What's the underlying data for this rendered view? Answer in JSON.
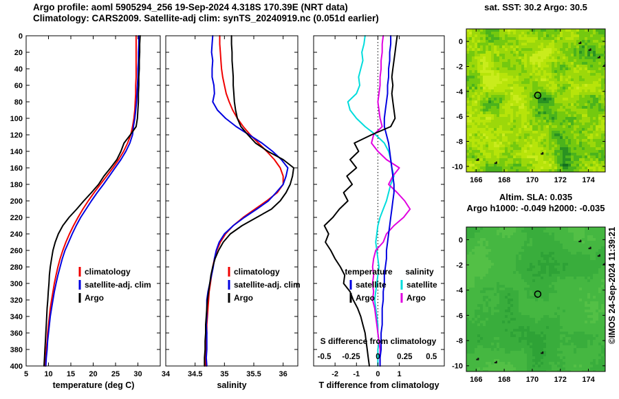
{
  "header": {
    "line1": "Argo profile: aoml 5905294_256 19-Sep-2024 4.318S 170.39E (NRT data)",
    "line2": "Climatology: CARS2009. Satellite-adj clim: synTS_20240919.nc (0.051d earlier)"
  },
  "watermark": "©IMOS 24-Sep-2024 11:39:21",
  "colors": {
    "climatology": "#f00000",
    "satellite": "#0000e0",
    "argo": "#000000",
    "satellite_salinity": "#00dcdc",
    "argo_salinity": "#e000e0"
  },
  "islands": [
    [
      173.4,
      -0.15
    ],
    [
      174.1,
      -0.7
    ],
    [
      174.75,
      -1.3
    ],
    [
      175.15,
      -1.95
    ],
    [
      175.5,
      -2.6
    ],
    [
      166.1,
      -9.5
    ],
    [
      167.4,
      -9.75
    ],
    [
      170.7,
      -9.0
    ]
  ],
  "chart_data": [
    {
      "type": "line",
      "xlabel": "temperature (deg C)",
      "xlim": [
        5,
        35
      ],
      "xticks": [
        5,
        10,
        15,
        20,
        25,
        30
      ],
      "ylim": [
        0,
        400
      ],
      "yticks": [
        0,
        20,
        40,
        60,
        80,
        100,
        120,
        140,
        160,
        180,
        200,
        220,
        240,
        260,
        280,
        300,
        320,
        340,
        360,
        380,
        400
      ],
      "yticklabels": true,
      "depths": [
        0,
        10,
        20,
        30,
        40,
        50,
        60,
        70,
        80,
        90,
        100,
        110,
        120,
        130,
        140,
        150,
        160,
        170,
        180,
        190,
        200,
        210,
        220,
        230,
        240,
        250,
        260,
        270,
        280,
        290,
        300,
        310,
        320,
        330,
        340,
        350,
        360,
        370,
        380,
        390,
        400
      ],
      "legend": [
        {
          "label": "climatology",
          "color": "climatology"
        },
        {
          "label": "satellite-adj. clim",
          "color": "satellite"
        },
        {
          "label": "Argo",
          "color": "argo"
        }
      ],
      "series": [
        {
          "name": "climatology-temperature",
          "color": "climatology",
          "values": [
            29.6,
            29.6,
            29.6,
            29.6,
            29.6,
            29.6,
            29.5,
            29.5,
            29.4,
            29.3,
            29.1,
            28.8,
            28.4,
            27.7,
            26.8,
            25.7,
            24.4,
            23.0,
            21.6,
            20.2,
            18.9,
            17.7,
            16.6,
            15.6,
            14.7,
            13.9,
            13.2,
            12.6,
            12.1,
            11.7,
            11.3,
            11.0,
            10.7,
            10.4,
            10.2,
            10.0,
            9.8,
            9.7,
            9.5,
            9.4,
            9.3
          ]
        },
        {
          "name": "satellite-adj-clim-temperature",
          "color": "satellite",
          "values": [
            30.2,
            30.2,
            30.1,
            30.1,
            30.0,
            30.0,
            29.9,
            29.8,
            29.7,
            29.5,
            29.3,
            29.0,
            28.8,
            28.2,
            27.3,
            26.2,
            24.9,
            23.6,
            22.3,
            20.9,
            19.6,
            18.4,
            17.2,
            16.2,
            15.3,
            14.5,
            13.7,
            13.1,
            12.6,
            12.1,
            11.7,
            11.3,
            11.0,
            10.7,
            10.4,
            10.2,
            10.0,
            9.8,
            9.7,
            9.5,
            9.4
          ]
        },
        {
          "name": "argo-temperature",
          "color": "argo",
          "values": [
            30.5,
            30.4,
            30.4,
            30.3,
            30.3,
            30.2,
            30.2,
            30.1,
            30.1,
            30.0,
            29.9,
            29.6,
            28.3,
            26.9,
            26.2,
            25.3,
            23.9,
            22.4,
            21.2,
            19.6,
            17.9,
            16.3,
            14.6,
            13.2,
            12.2,
            11.5,
            11.0,
            10.7,
            10.4,
            10.2,
            10.1,
            9.95,
            9.85,
            9.7,
            9.6,
            9.5,
            9.4,
            9.3,
            9.2,
            9.1,
            9.0
          ]
        }
      ]
    },
    {
      "type": "line",
      "xlabel": "salinity",
      "xlim": [
        34,
        36.25
      ],
      "xticks": [
        34,
        34.5,
        35,
        35.5,
        36
      ],
      "ylim": [
        0,
        400
      ],
      "yticks": [
        0,
        20,
        40,
        60,
        80,
        100,
        120,
        140,
        160,
        180,
        200,
        220,
        240,
        260,
        280,
        300,
        320,
        340,
        360,
        380,
        400
      ],
      "yticklabels": false,
      "depths": [
        0,
        10,
        20,
        30,
        40,
        50,
        60,
        70,
        80,
        90,
        100,
        110,
        120,
        130,
        140,
        150,
        160,
        170,
        180,
        190,
        200,
        210,
        220,
        230,
        240,
        250,
        260,
        270,
        280,
        290,
        300,
        310,
        320,
        330,
        340,
        350,
        360,
        370,
        380,
        390,
        400
      ],
      "legend": [
        {
          "label": "climatology",
          "color": "climatology"
        },
        {
          "label": "satellite-adj. clim",
          "color": "satellite"
        },
        {
          "label": "Argo",
          "color": "argo"
        }
      ],
      "series": [
        {
          "name": "climatology-salinity",
          "color": "climatology",
          "values": [
            34.92,
            34.92,
            34.93,
            34.94,
            34.95,
            34.97,
            35.0,
            35.03,
            35.08,
            35.14,
            35.22,
            35.32,
            35.44,
            35.58,
            35.72,
            35.85,
            35.95,
            36.0,
            36.0,
            35.9,
            35.72,
            35.52,
            35.32,
            35.15,
            35.02,
            34.93,
            34.87,
            34.83,
            34.8,
            34.78,
            34.76,
            34.74,
            34.73,
            34.72,
            34.71,
            34.7,
            34.7,
            34.69,
            34.69,
            34.68,
            34.68
          ]
        },
        {
          "name": "satellite-adj-clim-salinity",
          "color": "satellite",
          "values": [
            34.8,
            34.79,
            34.78,
            34.8,
            34.79,
            34.79,
            34.82,
            34.83,
            34.8,
            34.88,
            35.02,
            35.2,
            35.42,
            35.64,
            35.82,
            35.97,
            36.08,
            36.05,
            36.0,
            35.88,
            35.75,
            35.55,
            35.34,
            35.15,
            35.0,
            34.91,
            34.86,
            34.83,
            34.81,
            34.78,
            34.75,
            34.72,
            34.7,
            34.7,
            34.7,
            34.69,
            34.7,
            34.7,
            34.7,
            34.69,
            34.7
          ]
        },
        {
          "name": "argo-salinity",
          "color": "argo",
          "values": [
            35.12,
            35.12,
            35.13,
            35.13,
            35.14,
            35.15,
            35.15,
            35.16,
            35.17,
            35.19,
            35.22,
            35.28,
            35.4,
            35.53,
            35.74,
            36.0,
            36.18,
            36.16,
            36.12,
            36.05,
            35.95,
            35.8,
            35.55,
            35.3,
            35.1,
            34.98,
            34.9,
            34.84,
            34.8,
            34.77,
            34.75,
            34.73,
            34.71,
            34.7,
            34.69,
            34.68,
            34.68,
            34.67,
            34.67,
            34.66,
            34.66
          ]
        }
      ]
    },
    {
      "type": "line",
      "xlabel": "T difference from climatology",
      "x2label": "S difference from climatology",
      "xlim": [
        -3,
        3.1
      ],
      "xticks": [
        -2,
        -1,
        0,
        1
      ],
      "s_ticks": [
        -0.5,
        -0.25,
        0,
        0.25,
        0.5
      ],
      "s_scale": 5,
      "zero_line": true,
      "ylim": [
        0,
        400
      ],
      "yticks": [
        0,
        20,
        40,
        60,
        80,
        100,
        120,
        140,
        160,
        180,
        200,
        220,
        240,
        260,
        280,
        300,
        320,
        340,
        360,
        380,
        400
      ],
      "yticklabels": false,
      "depths": [
        0,
        10,
        20,
        30,
        40,
        50,
        60,
        70,
        80,
        90,
        100,
        110,
        120,
        130,
        140,
        150,
        160,
        170,
        180,
        190,
        200,
        210,
        220,
        230,
        240,
        250,
        260,
        270,
        280,
        290,
        300,
        310,
        320,
        330,
        340,
        350,
        360,
        370,
        380,
        390,
        400
      ],
      "legend_groups": [
        {
          "title": "temperature",
          "items": [
            {
              "label": "satellite",
              "color": "satellite"
            },
            {
              "label": "Argo",
              "color": "argo"
            }
          ]
        },
        {
          "title": "salinity",
          "items": [
            {
              "label": "satellite",
              "color": "satellite_salinity"
            },
            {
              "label": "Argo",
              "color": "argo_salinity"
            }
          ]
        }
      ],
      "series": [
        {
          "name": "satellite-salinity-difference",
          "color": "satellite_salinity",
          "scale": "s",
          "values": [
            -0.12,
            -0.13,
            -0.15,
            -0.14,
            -0.16,
            -0.18,
            -0.17,
            -0.2,
            -0.28,
            -0.26,
            -0.2,
            -0.12,
            -0.02,
            0.06,
            0.1,
            0.12,
            0.13,
            0.15,
            0.12,
            0.1,
            0.08,
            0.05,
            0.02,
            0.0,
            -0.01,
            -0.02,
            -0.01,
            0.0,
            0.01,
            0.0,
            -0.01,
            -0.02,
            -0.03,
            -0.02,
            -0.01,
            0.0,
            0.0,
            0.01,
            0.0,
            0.0,
            0.0
          ]
        },
        {
          "name": "argo-salinity-difference",
          "color": "argo_salinity",
          "scale": "s",
          "values": [
            0.05,
            0.04,
            0.04,
            0.03,
            0.03,
            0.02,
            0.02,
            0.01,
            0.0,
            0.01,
            0.02,
            0.04,
            -0.04,
            -0.06,
            0.0,
            0.08,
            0.2,
            0.14,
            0.1,
            0.18,
            0.25,
            0.3,
            0.24,
            0.15,
            0.08,
            0.05,
            -0.02,
            -0.04,
            -0.05,
            -0.04,
            -0.05,
            -0.04,
            -0.05,
            -0.03,
            -0.02,
            -0.01,
            0.0,
            0.01,
            0.02,
            0.02,
            0.02
          ]
        },
        {
          "name": "satellite-temperature-difference",
          "color": "satellite",
          "values": [
            0.6,
            0.6,
            0.55,
            0.55,
            0.5,
            0.5,
            0.45,
            0.45,
            0.4,
            0.35,
            0.3,
            0.3,
            0.4,
            0.5,
            0.55,
            0.6,
            0.65,
            0.7,
            0.75,
            0.75,
            0.7,
            0.65,
            0.6,
            0.55,
            0.5,
            0.45,
            0.4,
            0.4,
            0.35,
            0.3,
            0.3,
            0.25,
            0.25,
            0.2,
            0.2,
            0.2,
            0.15,
            0.15,
            0.15,
            0.1,
            0.1
          ]
        },
        {
          "name": "argo-temperature-difference",
          "color": "argo",
          "values": [
            0.9,
            0.85,
            0.8,
            0.75,
            0.7,
            0.65,
            0.7,
            0.65,
            0.7,
            0.75,
            0.8,
            0.6,
            -0.3,
            -1.1,
            -0.9,
            -1.3,
            -1.0,
            -1.45,
            -1.2,
            -1.6,
            -1.4,
            -1.8,
            -2.1,
            -2.5,
            -2.3,
            -2.45,
            -2.2,
            -2.0,
            -1.75,
            -1.55,
            -1.6,
            -1.3,
            -1.15,
            -0.95,
            -0.8,
            -0.7,
            -0.6,
            -0.55,
            -0.5,
            -0.45,
            -0.4
          ]
        }
      ]
    },
    {
      "type": "heatmap",
      "title": "sat. SST: 30.2 Argo: 30.5",
      "sst_satellite": 30.2,
      "sst_argo": 30.5,
      "xlim": [
        165.3,
        175.2
      ],
      "ylim": [
        1.0,
        -10.45
      ],
      "xticks": [
        166,
        168,
        170,
        172,
        174
      ],
      "yticks": [
        0,
        -2,
        -4,
        -6,
        -8,
        -10
      ],
      "float_marker": {
        "lon": 170.39,
        "lat": -4.318
      },
      "palette": [
        "#14701e",
        "#2a9222",
        "#4bb31c",
        "#74c90f",
        "#9cd80a",
        "#b7e40a",
        "#c9ec1c"
      ]
    },
    {
      "type": "heatmap",
      "title": "Altim. SLA: 0.035",
      "subtitle": "Argo h1000: -0.049 h2000: -0.035",
      "sla": 0.035,
      "argo_h1000": -0.049,
      "argo_h2000": -0.035,
      "xlim": [
        165.3,
        175.2
      ],
      "ylim": [
        1.0,
        -10.45
      ],
      "xticks": [
        166,
        168,
        170,
        172,
        174
      ],
      "yticks": [
        0,
        -2,
        -4,
        -6,
        -8,
        -10
      ],
      "float_marker": {
        "lon": 170.39,
        "lat": -4.318
      },
      "palette": [
        "#23972f",
        "#2ea236",
        "#39ad3c",
        "#45b741",
        "#53c046",
        "#62c84b"
      ]
    }
  ]
}
